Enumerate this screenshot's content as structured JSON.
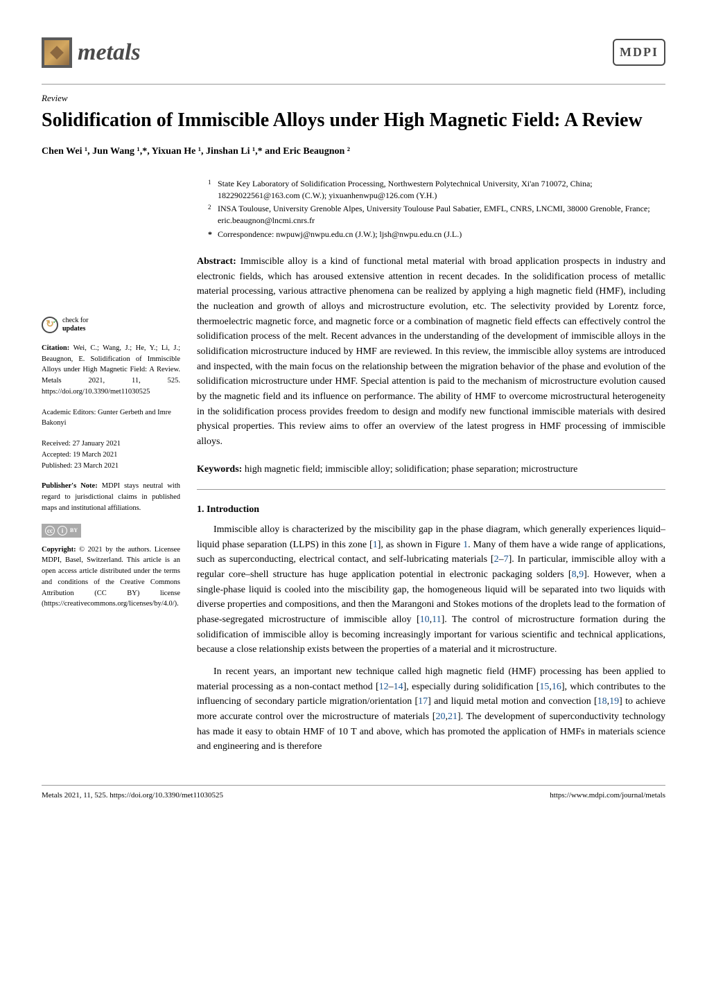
{
  "header": {
    "journal_name": "metals",
    "publisher_logo": "MDPI"
  },
  "article_type": "Review",
  "title": "Solidification of Immiscible Alloys under High Magnetic Field: A Review",
  "authors": "Chen Wei ¹, Jun Wang ¹,*, Yixuan He ¹, Jinshan Li ¹,* and Eric Beaugnon ²",
  "affiliations": [
    {
      "marker": "1",
      "text": "State Key Laboratory of Solidification Processing, Northwestern Polytechnical University, Xi'an 710072, China; 18229022561@163.com (C.W.); yixuanhenwpu@126.com (Y.H.)"
    },
    {
      "marker": "2",
      "text": "INSA Toulouse, University Grenoble Alpes, University Toulouse Paul Sabatier, EMFL, CNRS, LNCMI, 38000 Grenoble, France; eric.beaugnon@lncmi.cnrs.fr"
    },
    {
      "marker": "*",
      "text": "Correspondence: nwpuwj@nwpu.edu.cn (J.W.); ljsh@nwpu.edu.cn (J.L.)"
    }
  ],
  "abstract": {
    "label": "Abstract:",
    "text": "Immiscible alloy is a kind of functional metal material with broad application prospects in industry and electronic fields, which has aroused extensive attention in recent decades. In the solidification process of metallic material processing, various attractive phenomena can be realized by applying a high magnetic field (HMF), including the nucleation and growth of alloys and microstructure evolution, etc. The selectivity provided by Lorentz force, thermoelectric magnetic force, and magnetic force or a combination of magnetic field effects can effectively control the solidification process of the melt. Recent advances in the understanding of the development of immiscible alloys in the solidification microstructure induced by HMF are reviewed. In this review, the immiscible alloy systems are introduced and inspected, with the main focus on the relationship between the migration behavior of the phase and evolution of the solidification microstructure under HMF. Special attention is paid to the mechanism of microstructure evolution caused by the magnetic field and its influence on performance. The ability of HMF to overcome microstructural heterogeneity in the solidification process provides freedom to design and modify new functional immiscible materials with desired physical properties. This review aims to offer an overview of the latest progress in HMF processing of immiscible alloys."
  },
  "keywords": {
    "label": "Keywords:",
    "text": "high magnetic field; immiscible alloy; solidification; phase separation; microstructure"
  },
  "sidebar": {
    "check_updates": {
      "line1": "check for",
      "line2": "updates"
    },
    "citation": {
      "label": "Citation:",
      "text": "Wei, C.; Wang, J.; He, Y.; Li, J.; Beaugnon, E. Solidification of Immiscible Alloys under High Magnetic Field: A Review. Metals 2021, 11, 525. https://doi.org/10.3390/met11030525"
    },
    "editors": "Academic Editors: Gunter Gerbeth and Imre Bakonyi",
    "dates": {
      "received": "Received: 27 January 2021",
      "accepted": "Accepted: 19 March 2021",
      "published": "Published: 23 March 2021"
    },
    "publishers_note": {
      "label": "Publisher's Note:",
      "text": "MDPI stays neutral with regard to jurisdictional claims in published maps and institutional affiliations."
    },
    "cc_symbol": "cc",
    "by_symbol": "i",
    "copyright": {
      "label": "Copyright:",
      "text": "© 2021 by the authors. Licensee MDPI, Basel, Switzerland. This article is an open access article distributed under the terms and conditions of the Creative Commons Attribution (CC BY) license (https://creativecommons.org/licenses/by/4.0/)."
    }
  },
  "sections": {
    "intro_heading": "1. Introduction",
    "intro_p1_a": "Immiscible alloy is characterized by the miscibility gap in the phase diagram, which generally experiences liquid–liquid phase separation (LLPS) in this zone [",
    "intro_p1_ref1": "1",
    "intro_p1_b": "], as shown in Figure ",
    "intro_p1_ref2": "1",
    "intro_p1_c": ". Many of them have a wide range of applications, such as superconducting, electrical contact, and self-lubricating materials [",
    "intro_p1_ref3": "2",
    "intro_p1_d": "–",
    "intro_p1_ref4": "7",
    "intro_p1_e": "]. In particular, immiscible alloy with a regular core–shell structure has huge application potential in electronic packaging solders [",
    "intro_p1_ref5": "8",
    "intro_p1_f": ",",
    "intro_p1_ref6": "9",
    "intro_p1_g": "]. However, when a single-phase liquid is cooled into the miscibility gap, the homogeneous liquid will be separated into two liquids with diverse properties and compositions, and then the Marangoni and Stokes motions of the droplets lead to the formation of phase-segregated microstructure of immiscible alloy [",
    "intro_p1_ref7": "10",
    "intro_p1_h": ",",
    "intro_p1_ref8": "11",
    "intro_p1_i": "]. The control of microstructure formation during the solidification of immiscible alloy is becoming increasingly important for various scientific and technical applications, because a close relationship exists between the properties of a material and it microstructure.",
    "intro_p2_a": "In recent years, an important new technique called high magnetic field (HMF) processing has been applied to material processing as a non-contact method [",
    "intro_p2_ref1": "12",
    "intro_p2_b": "–",
    "intro_p2_ref2": "14",
    "intro_p2_c": "], especially during solidification [",
    "intro_p2_ref3": "15",
    "intro_p2_d": ",",
    "intro_p2_ref4": "16",
    "intro_p2_e": "], which contributes to the influencing of secondary particle migration/orientation [",
    "intro_p2_ref5": "17",
    "intro_p2_f": "] and liquid metal motion and convection [",
    "intro_p2_ref6": "18",
    "intro_p2_g": ",",
    "intro_p2_ref7": "19",
    "intro_p2_h": "] to achieve more accurate control over the microstructure of materials [",
    "intro_p2_ref8": "20",
    "intro_p2_i": ",",
    "intro_p2_ref9": "21",
    "intro_p2_j": "]. The development of superconductivity technology has made it easy to obtain HMF of 10 T and above, which has promoted the application of HMFs in materials science and engineering and is therefore"
  },
  "footer": {
    "left": "Metals 2021, 11, 525. https://doi.org/10.3390/met11030525",
    "right": "https://www.mdpi.com/journal/metals"
  }
}
